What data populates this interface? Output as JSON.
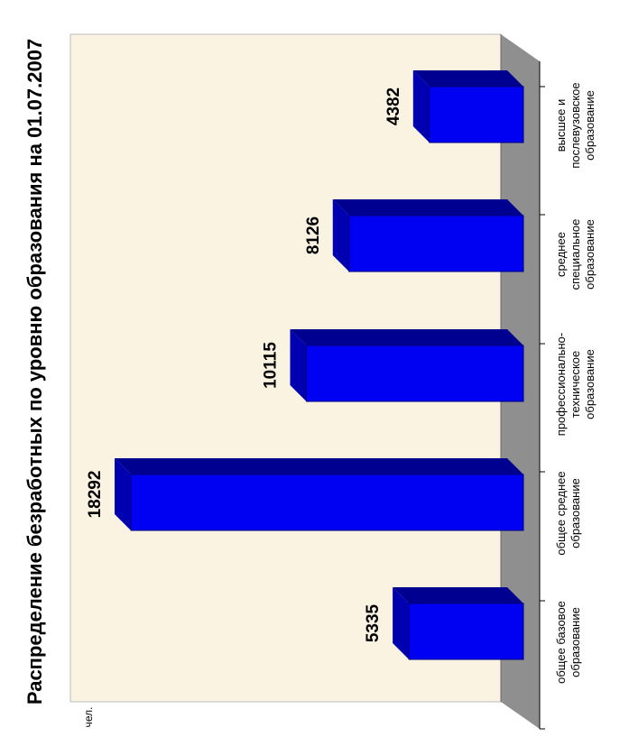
{
  "chart_data": {
    "type": "bar",
    "title": "Распределение безработных по уровню образования на 01.07.2007",
    "ylabel": "чел.",
    "categories": [
      [
        "общее базовое",
        "образование"
      ],
      [
        "общее среднее",
        "образование"
      ],
      [
        "профессионально-",
        "техническое",
        "образование"
      ],
      [
        "среднее",
        "специальное",
        "образование"
      ],
      [
        "высшее и",
        "послевузовское",
        "образование"
      ]
    ],
    "values": [
      5335,
      18292,
      10115,
      8126,
      4382
    ],
    "value_labels": [
      "5335",
      "18292",
      "10115",
      "8126",
      "4382"
    ],
    "ylim": [
      0,
      20000
    ],
    "grid": false,
    "orientation": "rotated-90-clockwise"
  },
  "colors": {
    "bar_front": "#0000f2",
    "bar_top": "#000090",
    "bar_side": "#0000b0",
    "back_wall": "#faf3e2",
    "floor": "#8f8f8f",
    "floor_edge": "#6a6a6a"
  }
}
